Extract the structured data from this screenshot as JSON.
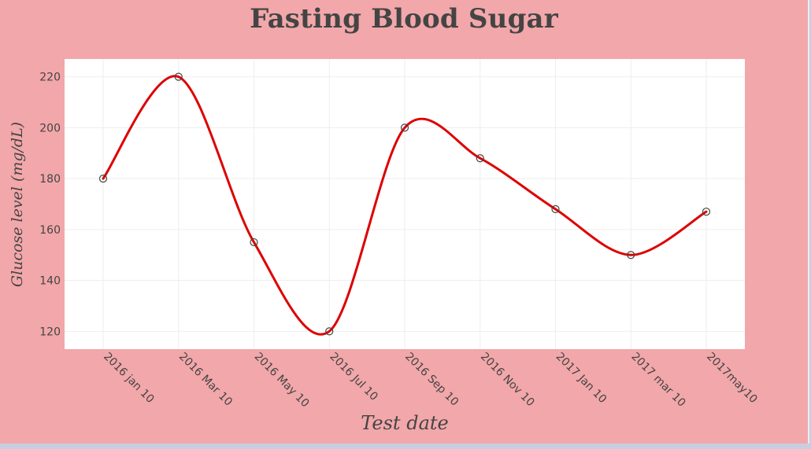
{
  "chart_data": {
    "type": "line",
    "title": "Fasting Blood Sugar",
    "xlabel": "Test date",
    "ylabel": "Glucose level  (mg/dL)",
    "categories": [
      "2016 jan  10",
      "2016 Mar 10",
      "2016 May 10",
      "2016 Jul 10",
      "2016 Sep 10",
      "2016 Nov 10",
      "2017 Jan 10",
      "2017 mar 10",
      "2017may10"
    ],
    "series": [
      {
        "values": [
          180,
          220,
          155,
          120,
          200,
          188,
          168,
          150,
          167
        ]
      }
    ],
    "ylim": [
      113,
      227
    ],
    "yticks": [
      120,
      140,
      160,
      180,
      200,
      220
    ],
    "line_shape": "spline",
    "markers": "open-circle",
    "grid": true,
    "colors": {
      "line": "#dd0000",
      "marker": "#444444",
      "background": "#f2a7aa",
      "plot_background": "#ffffff",
      "grid": "#eeeeee"
    }
  }
}
